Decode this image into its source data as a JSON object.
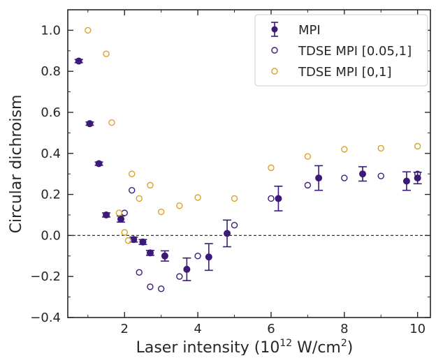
{
  "chart_data": {
    "type": "scatter",
    "title": "",
    "xlabel_main": "Laser intensity (10",
    "xlabel_sup_exp": "12",
    "xlabel_mid": " W/cm",
    "xlabel_sup_sq": "2",
    "xlabel_end": ")",
    "ylabel": "Circular dichroism",
    "xlim": [
      0.45,
      10.35
    ],
    "ylim": [
      -0.4,
      1.1
    ],
    "x_ticks": [
      2,
      4,
      6,
      8,
      10
    ],
    "x_tick_labels": [
      "2",
      "4",
      "6",
      "8",
      "10"
    ],
    "y_ticks": [
      -0.4,
      -0.2,
      0.0,
      0.2,
      0.4,
      0.6,
      0.8,
      1.0
    ],
    "y_tick_labels": [
      "−0.4",
      "−0.2",
      "0.0",
      "0.2",
      "0.4",
      "0.6",
      "0.8",
      "1.0"
    ],
    "reference_line": {
      "y": 0,
      "style": "dashed"
    },
    "grid": false,
    "legend_position": "top-right",
    "series": [
      {
        "name": "MPI",
        "marker": "filled-circle-errorbar",
        "color": "#3b1a78",
        "points": [
          {
            "x": 0.75,
            "y": 0.85,
            "err": 0.008
          },
          {
            "x": 1.05,
            "y": 0.545,
            "err": 0.008
          },
          {
            "x": 1.3,
            "y": 0.35,
            "err": 0.008
          },
          {
            "x": 1.5,
            "y": 0.1,
            "err": 0.01
          },
          {
            "x": 1.9,
            "y": 0.08,
            "err": 0.015
          },
          {
            "x": 2.25,
            "y": -0.02,
            "err": 0.012
          },
          {
            "x": 2.5,
            "y": -0.032,
            "err": 0.012
          },
          {
            "x": 2.7,
            "y": -0.085,
            "err": 0.012
          },
          {
            "x": 3.1,
            "y": -0.1,
            "err": 0.025
          },
          {
            "x": 3.7,
            "y": -0.165,
            "err": 0.055
          },
          {
            "x": 4.3,
            "y": -0.105,
            "err": 0.065
          },
          {
            "x": 4.8,
            "y": 0.01,
            "err": 0.065
          },
          {
            "x": 6.2,
            "y": 0.18,
            "err": 0.06
          },
          {
            "x": 7.3,
            "y": 0.28,
            "err": 0.06
          },
          {
            "x": 8.5,
            "y": 0.3,
            "err": 0.035
          },
          {
            "x": 9.7,
            "y": 0.265,
            "err": 0.045
          },
          {
            "x": 10.0,
            "y": 0.28,
            "err": 0.028
          }
        ]
      },
      {
        "name": "TDSE MPI [0.05,1]",
        "marker": "open-circle",
        "color": "#3b1a78",
        "points": [
          {
            "x": 2.0,
            "y": 0.11
          },
          {
            "x": 2.2,
            "y": 0.22
          },
          {
            "x": 2.4,
            "y": -0.18
          },
          {
            "x": 2.7,
            "y": -0.25
          },
          {
            "x": 3.0,
            "y": -0.26
          },
          {
            "x": 3.5,
            "y": -0.2
          },
          {
            "x": 4.0,
            "y": -0.1
          },
          {
            "x": 5.0,
            "y": 0.05
          },
          {
            "x": 6.0,
            "y": 0.18
          },
          {
            "x": 7.0,
            "y": 0.245
          },
          {
            "x": 8.0,
            "y": 0.28
          },
          {
            "x": 9.0,
            "y": 0.29
          },
          {
            "x": 10.0,
            "y": 0.3
          }
        ]
      },
      {
        "name": "TDSE MPI [0,1]",
        "marker": "open-circle",
        "color": "#d9a227",
        "points": [
          {
            "x": 1.0,
            "y": 1.0
          },
          {
            "x": 1.5,
            "y": 0.885
          },
          {
            "x": 1.65,
            "y": 0.55
          },
          {
            "x": 1.85,
            "y": 0.11
          },
          {
            "x": 2.0,
            "y": 0.015
          },
          {
            "x": 2.1,
            "y": -0.025
          },
          {
            "x": 2.2,
            "y": 0.3
          },
          {
            "x": 2.4,
            "y": 0.18
          },
          {
            "x": 2.7,
            "y": 0.245
          },
          {
            "x": 3.0,
            "y": 0.115
          },
          {
            "x": 3.5,
            "y": 0.145
          },
          {
            "x": 4.0,
            "y": 0.185
          },
          {
            "x": 5.0,
            "y": 0.18
          },
          {
            "x": 6.0,
            "y": 0.33
          },
          {
            "x": 7.0,
            "y": 0.385
          },
          {
            "x": 8.0,
            "y": 0.42
          },
          {
            "x": 9.0,
            "y": 0.425
          },
          {
            "x": 10.0,
            "y": 0.435
          }
        ]
      }
    ]
  }
}
